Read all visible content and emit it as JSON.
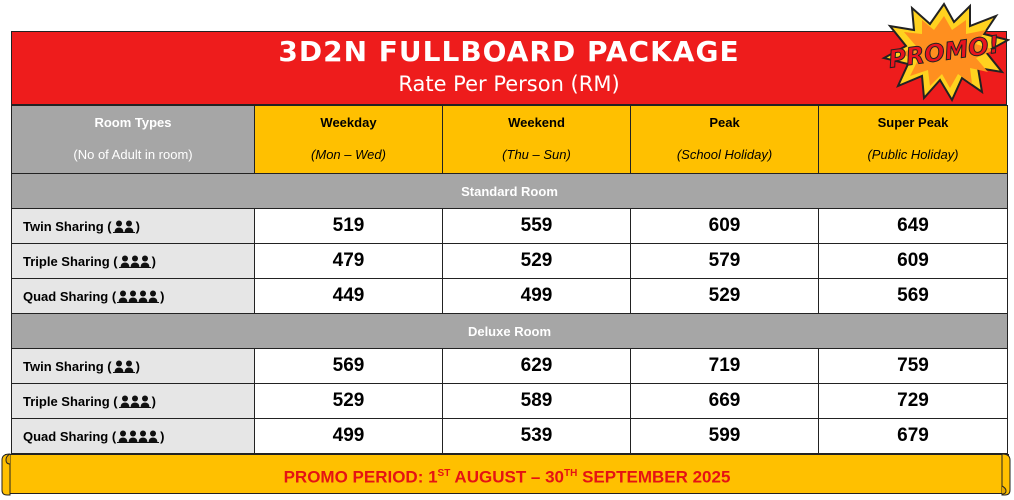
{
  "banner": {
    "title": "3D2N FULLBOARD PACKAGE",
    "subtitle": "Rate Per Person (RM)"
  },
  "promo_badge": "PROMO!",
  "columns": {
    "room_types": {
      "title": "Room Types",
      "sub": "(No of Adult in room)"
    },
    "weekday": {
      "title": "Weekday",
      "sub": "(Mon – Wed)"
    },
    "weekend": {
      "title": "Weekend",
      "sub": "(Thu – Sun)"
    },
    "peak": {
      "title": "Peak",
      "sub": "(School Holiday)"
    },
    "super_peak": {
      "title": "Super Peak",
      "sub": "(Public Holiday)"
    }
  },
  "sections": [
    {
      "name": "Standard Room",
      "rows": [
        {
          "label": "Twin Sharing (",
          "close": ")",
          "people": 2,
          "weekday": "519",
          "weekend": "559",
          "peak": "609",
          "super_peak": "649"
        },
        {
          "label": "Triple Sharing (",
          "close": ")",
          "people": 3,
          "weekday": "479",
          "weekend": "529",
          "peak": "579",
          "super_peak": "609"
        },
        {
          "label": "Quad Sharing (",
          "close": ")",
          "people": 4,
          "weekday": "449",
          "weekend": "499",
          "peak": "529",
          "super_peak": "569"
        }
      ]
    },
    {
      "name": "Deluxe Room",
      "rows": [
        {
          "label": "Twin Sharing (",
          "close": ")",
          "people": 2,
          "weekday": "569",
          "weekend": "629",
          "peak": "719",
          "super_peak": "759"
        },
        {
          "label": "Triple Sharing (",
          "close": ")",
          "people": 3,
          "weekday": "529",
          "weekend": "589",
          "peak": "669",
          "super_peak": "729"
        },
        {
          "label": "Quad Sharing (",
          "close": ")",
          "people": 4,
          "weekday": "499",
          "weekend": "539",
          "peak": "599",
          "super_peak": "679"
        }
      ]
    }
  ],
  "footer": {
    "prefix": "PROMO PERIOD: 1",
    "sup1": "ST",
    "mid": " AUGUST – 30",
    "sup2": "TH",
    "suffix": " SEPTEMBER 2025"
  },
  "colors": {
    "banner": "#ee1c1c",
    "header_gold": "#ffc000",
    "header_grey": "#a6a6a6",
    "name_cell": "#e6e6e6",
    "footer_text": "#e51313"
  },
  "icons": {
    "people": "person-silhouette-icon",
    "badge": "promo-burst-icon"
  }
}
